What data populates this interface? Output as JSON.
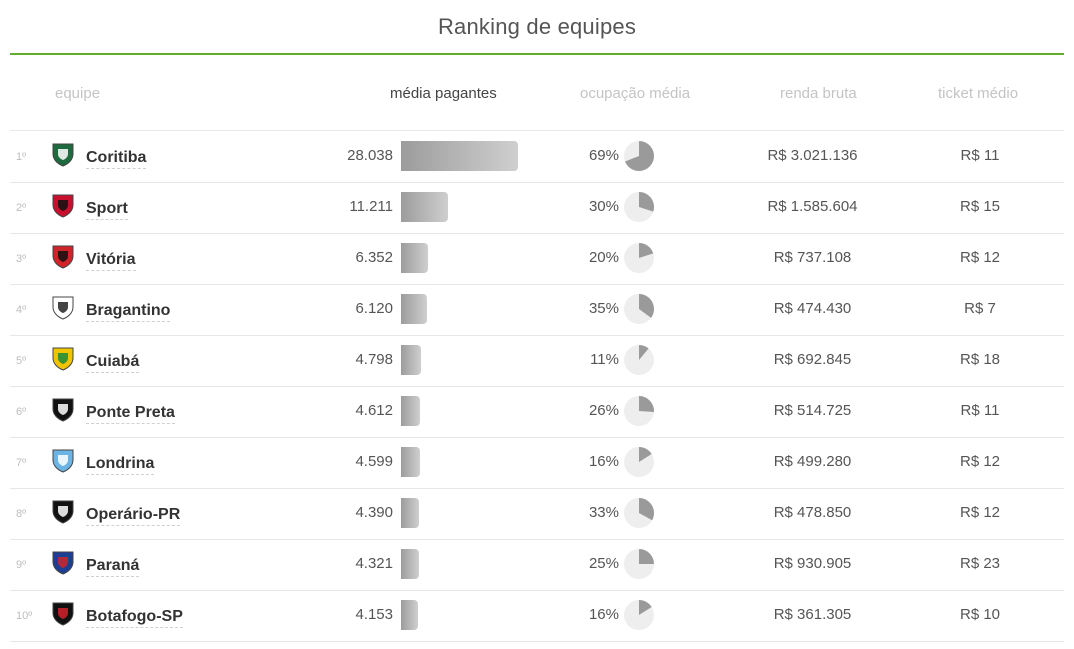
{
  "title": "Ranking de equipes",
  "headers": {
    "equipe": "equipe",
    "media": "média pagantes",
    "ocupacao": "ocupação média",
    "renda": "renda bruta",
    "ticket": "ticket médio"
  },
  "max_media": 28038,
  "rows": [
    {
      "rank": "1º",
      "team": "Coritiba",
      "media": "28.038",
      "media_value": 28038,
      "ocupacao": "69%",
      "ocupacao_value": 0.69,
      "renda": "R$ 3.021.136",
      "ticket": "R$ 11",
      "crest": "coritiba-crest-icon",
      "crest_colors": [
        "#1d6b3e",
        "#ffffff"
      ]
    },
    {
      "rank": "2º",
      "team": "Sport",
      "media": "11.211",
      "media_value": 11211,
      "ocupacao": "30%",
      "ocupacao_value": 0.3,
      "renda": "R$ 1.585.604",
      "ticket": "R$ 15",
      "crest": "sport-crest-icon",
      "crest_colors": [
        "#c8102e",
        "#111111"
      ]
    },
    {
      "rank": "3º",
      "team": "Vitória",
      "media": "6.352",
      "media_value": 6352,
      "ocupacao": "20%",
      "ocupacao_value": 0.2,
      "renda": "R$ 737.108",
      "ticket": "R$ 12",
      "crest": "vitoria-crest-icon",
      "crest_colors": [
        "#d2232a",
        "#111111"
      ]
    },
    {
      "rank": "4º",
      "team": "Bragantino",
      "media": "6.120",
      "media_value": 6120,
      "ocupacao": "35%",
      "ocupacao_value": 0.35,
      "renda": "R$ 474.430",
      "ticket": "R$ 7",
      "crest": "bragantino-crest-icon",
      "crest_colors": [
        "#ffffff",
        "#222222"
      ]
    },
    {
      "rank": "5º",
      "team": "Cuiabá",
      "media": "4.798",
      "media_value": 4798,
      "ocupacao": "11%",
      "ocupacao_value": 0.11,
      "renda": "R$ 692.845",
      "ticket": "R$ 18",
      "crest": "cuiaba-crest-icon",
      "crest_colors": [
        "#f2c300",
        "#1b8a3a"
      ]
    },
    {
      "rank": "6º",
      "team": "Ponte Preta",
      "media": "4.612",
      "media_value": 4612,
      "ocupacao": "26%",
      "ocupacao_value": 0.26,
      "renda": "R$ 514.725",
      "ticket": "R$ 11",
      "crest": "ponte-preta-crest-icon",
      "crest_colors": [
        "#111111",
        "#ffffff"
      ]
    },
    {
      "rank": "7º",
      "team": "Londrina",
      "media": "4.599",
      "media_value": 4599,
      "ocupacao": "16%",
      "ocupacao_value": 0.16,
      "renda": "R$ 499.280",
      "ticket": "R$ 12",
      "crest": "londrina-crest-icon",
      "crest_colors": [
        "#6cb4e4",
        "#ffffff"
      ]
    },
    {
      "rank": "8º",
      "team": "Operário-PR",
      "media": "4.390",
      "media_value": 4390,
      "ocupacao": "33%",
      "ocupacao_value": 0.33,
      "renda": "R$ 478.850",
      "ticket": "R$ 12",
      "crest": "operario-pr-crest-icon",
      "crest_colors": [
        "#111111",
        "#ffffff"
      ]
    },
    {
      "rank": "9º",
      "team": "Paraná",
      "media": "4.321",
      "media_value": 4321,
      "ocupacao": "25%",
      "ocupacao_value": 0.25,
      "renda": "R$ 930.905",
      "ticket": "R$ 23",
      "crest": "parana-crest-icon",
      "crest_colors": [
        "#1c3f94",
        "#d2232a"
      ]
    },
    {
      "rank": "10º",
      "team": "Botafogo-SP",
      "media": "4.153",
      "media_value": 4153,
      "ocupacao": "16%",
      "ocupacao_value": 0.16,
      "renda": "R$ 361.305",
      "ticket": "R$ 10",
      "crest": "botafogo-sp-crest-icon",
      "crest_colors": [
        "#111111",
        "#d2232a"
      ]
    }
  ]
}
